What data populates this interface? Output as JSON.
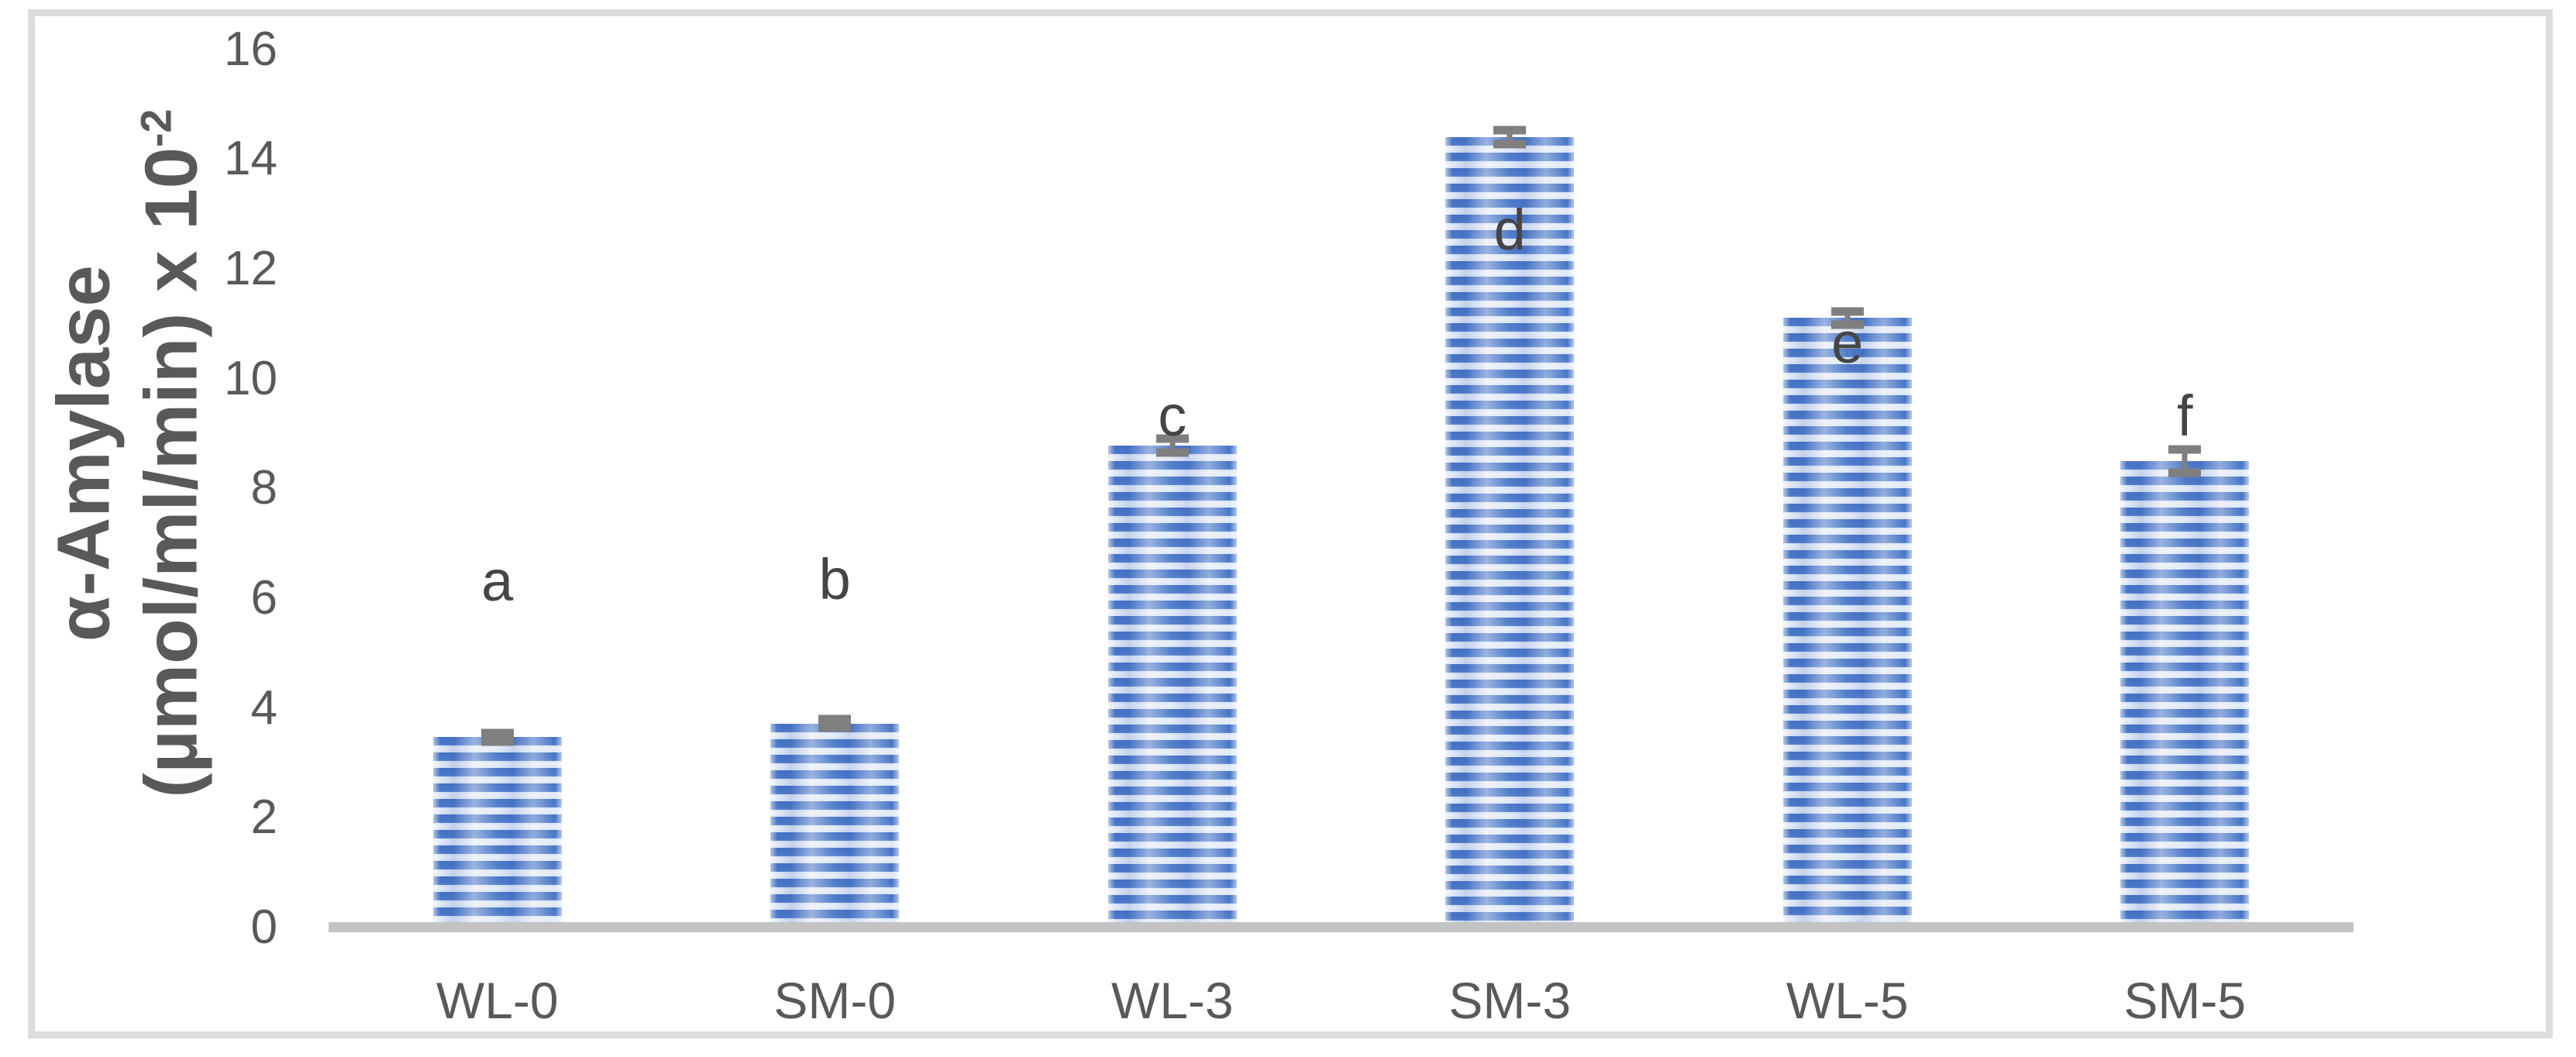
{
  "chart_data": {
    "type": "bar",
    "title": "",
    "categories": [
      "WL-0",
      "SM-0",
      "WL-3",
      "SM-3",
      "WL-5",
      "SM-5"
    ],
    "values": [
      3.47,
      3.72,
      8.78,
      14.4,
      11.11,
      8.5
    ],
    "error_bars": [
      0.08,
      0.08,
      0.13,
      0.13,
      0.12,
      0.21
    ],
    "significance_letters": [
      "a",
      "b",
      "c",
      "d",
      "e",
      "f"
    ],
    "letter_value_positions": [
      6.31,
      6.34,
      9.32,
      12.71,
      10.65,
      9.32
    ],
    "ylabel_line1": "α-Amylase",
    "ylabel_line2_base": "(µmol/ml/min) x 10",
    "ylabel_superscript": "-2",
    "yticks": [
      0,
      2,
      4,
      6,
      8,
      10,
      12,
      14,
      16
    ],
    "ylim": [
      0,
      16
    ],
    "xlabel": "",
    "grid": false,
    "legend": "none",
    "bar_pattern": "horizontal-stripes",
    "colors": {
      "bar_stripe_dark": "#4472c4",
      "bar_stripe_light": "#d9e3f5",
      "axis_line": "#c3c3c3",
      "error_bar": "#7f7f7f",
      "tick_text": "#595959",
      "letter_text": "#454545",
      "frame_border": "#dcdcdc"
    }
  }
}
